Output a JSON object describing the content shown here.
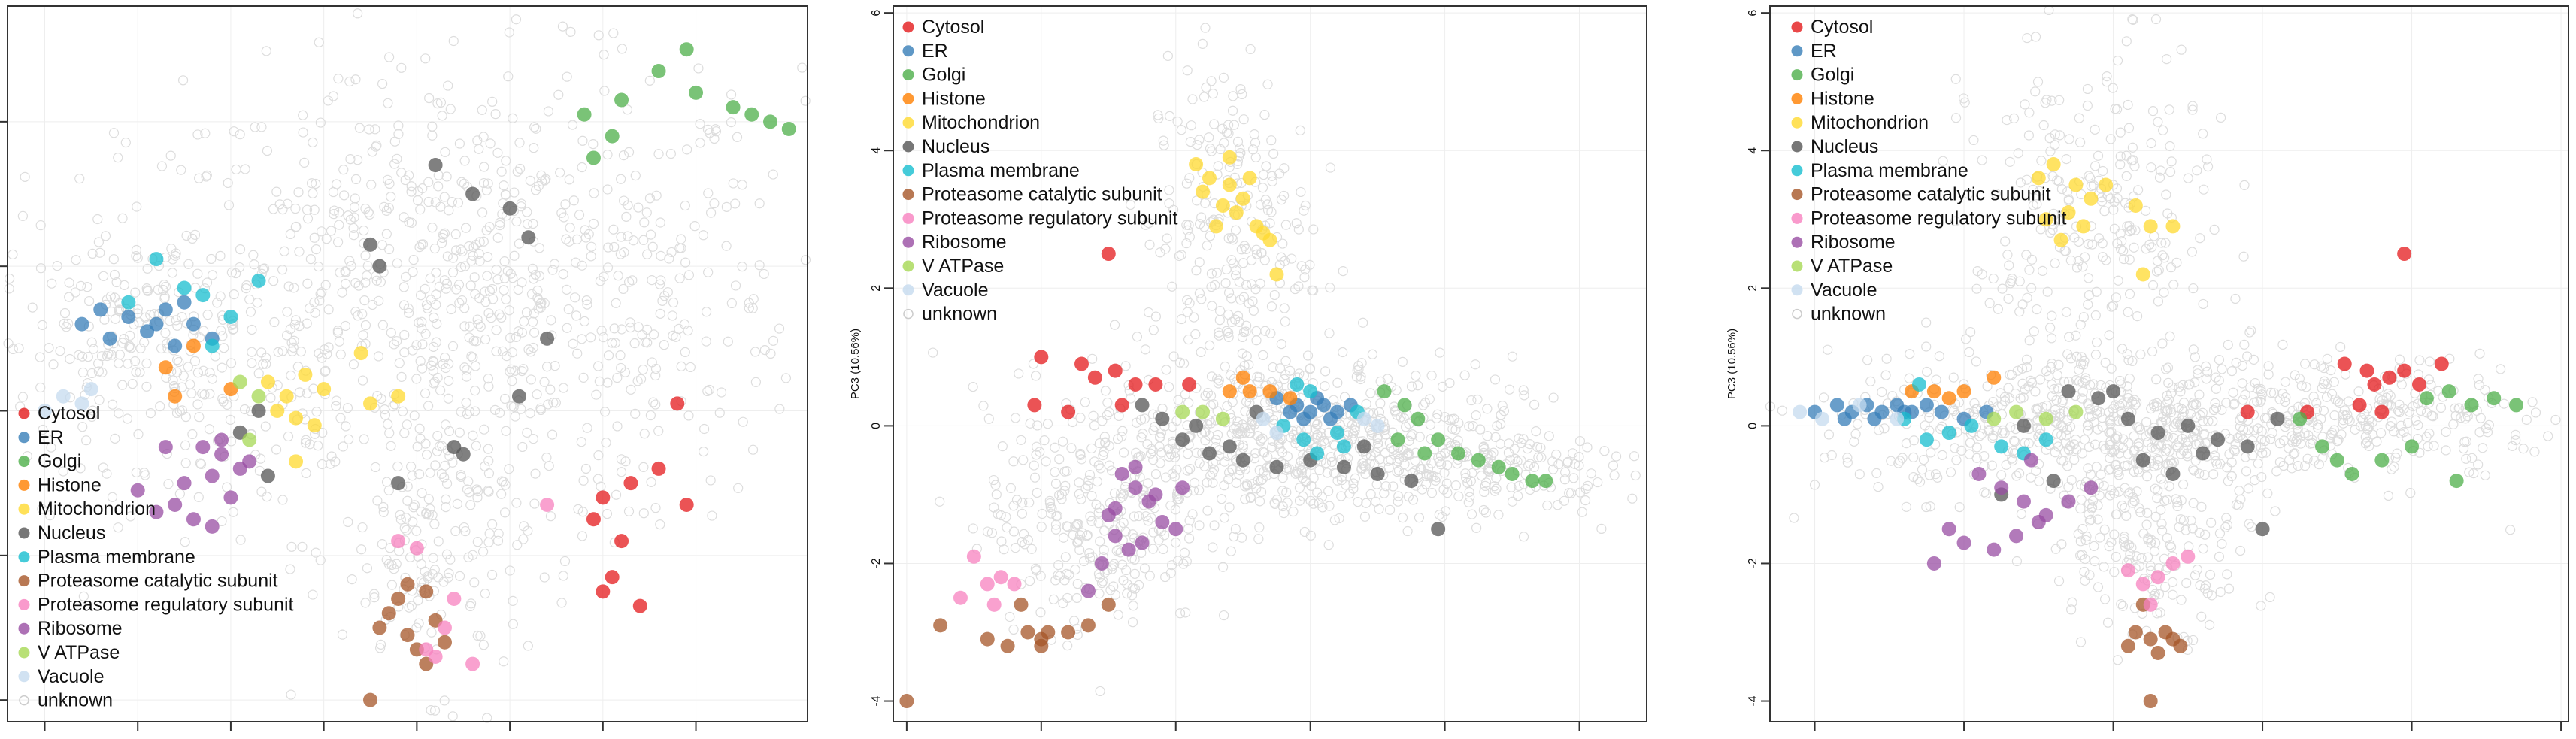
{
  "chart_data": [
    {
      "type": "scatter",
      "panel": "left",
      "xlabel": "",
      "ylabel": "",
      "xlim": [
        -3.4,
        5.2
      ],
      "ylim": [
        -4.3,
        5.6
      ],
      "xticks": [
        -3,
        -2,
        -1,
        0,
        1,
        2,
        3,
        4
      ],
      "yticks": [],
      "yticklabels_visible": false,
      "legend_position": "bottom-left",
      "grid": true,
      "background_points": "unknown",
      "series": [
        {
          "name": "Cytosol",
          "color": "#e41a1c",
          "x": [
            3.0,
            3.6,
            2.9,
            3.3,
            3.8,
            3.2,
            3.0,
            3.9,
            3.4,
            3.1
          ],
          "y": [
            -1.2,
            -0.8,
            -1.5,
            -1.0,
            0.1,
            -1.8,
            -2.5,
            -1.3,
            -2.7,
            -2.3
          ]
        },
        {
          "name": "ER",
          "color": "#377eb8",
          "x": [
            -2.6,
            -2.3,
            -2.1,
            -1.9,
            -1.7,
            -1.4,
            -1.2,
            -1.5,
            -2.4,
            -1.8,
            -1.6
          ],
          "y": [
            1.2,
            1.0,
            1.3,
            1.1,
            1.4,
            1.2,
            1.0,
            1.5,
            1.4,
            1.2,
            0.9
          ]
        },
        {
          "name": "Golgi",
          "color": "#4daf4a",
          "x": [
            3.9,
            3.6,
            4.4,
            4.6,
            3.2,
            2.8,
            4.0,
            4.8,
            5.0,
            2.9,
            3.1
          ],
          "y": [
            5.0,
            4.7,
            4.2,
            4.1,
            4.3,
            4.1,
            4.4,
            4.0,
            3.9,
            3.5,
            3.8
          ]
        },
        {
          "name": "Histone",
          "color": "#ff7f00",
          "x": [
            -1.7,
            -1.4,
            -1.0,
            -1.6
          ],
          "y": [
            0.6,
            0.9,
            0.3,
            0.2
          ]
        },
        {
          "name": "Mitochondrion",
          "color": "#ffd92f",
          "x": [
            -0.6,
            -0.4,
            -0.2,
            -0.5,
            -0.3,
            0.0,
            -0.1,
            0.4,
            0.5,
            0.8,
            -0.3
          ],
          "y": [
            0.4,
            0.2,
            0.5,
            0.0,
            -0.1,
            0.3,
            -0.2,
            0.8,
            0.1,
            0.2,
            -0.7
          ]
        },
        {
          "name": "Nucleus",
          "color": "#555555",
          "x": [
            1.2,
            1.6,
            2.0,
            2.2,
            2.4,
            0.5,
            0.6,
            -0.9,
            -0.7,
            1.4,
            1.5,
            2.1,
            0.8,
            -0.6
          ],
          "y": [
            3.4,
            3.0,
            2.8,
            2.4,
            1.0,
            2.3,
            2.0,
            -0.3,
            0.0,
            -0.5,
            -0.6,
            0.2,
            -1.0,
            -0.9
          ]
        },
        {
          "name": "Plasma membrane",
          "color": "#17becf",
          "x": [
            -1.8,
            -1.3,
            -0.7,
            -1.0,
            -2.1,
            -1.5,
            -1.2
          ],
          "y": [
            2.1,
            1.6,
            1.8,
            1.3,
            1.5,
            1.7,
            0.9
          ]
        },
        {
          "name": "Proteasome catalytic subunit",
          "color": "#a65628",
          "x": [
            0.9,
            1.1,
            0.8,
            1.2,
            0.6,
            0.9,
            1.3,
            1.0,
            1.1,
            0.7,
            0.5
          ],
          "y": [
            -2.4,
            -2.5,
            -2.6,
            -2.9,
            -3.0,
            -3.1,
            -3.2,
            -3.3,
            -3.5,
            -2.8,
            -4.0
          ]
        },
        {
          "name": "Proteasome regulatory subunit",
          "color": "#f781bf",
          "x": [
            1.0,
            1.4,
            1.2,
            1.6,
            1.1,
            1.3,
            2.4,
            0.8
          ],
          "y": [
            -1.9,
            -2.6,
            -3.4,
            -3.5,
            -3.3,
            -3.0,
            -1.3,
            -1.8
          ]
        },
        {
          "name": "Ribosome",
          "color": "#984ea3",
          "x": [
            -1.3,
            -1.1,
            -0.9,
            -1.2,
            -1.0,
            -1.5,
            -1.6,
            -1.8,
            -2.0,
            -1.4,
            -1.1,
            -0.8,
            -1.2,
            -1.7
          ],
          "y": [
            -0.5,
            -0.6,
            -0.8,
            -0.9,
            -1.2,
            -1.0,
            -1.3,
            -1.4,
            -1.1,
            -1.5,
            -0.4,
            -0.7,
            -1.6,
            -0.5
          ]
        },
        {
          "name": "V ATPase",
          "color": "#a6d854",
          "x": [
            -0.9,
            -0.7,
            -0.8
          ],
          "y": [
            0.4,
            0.2,
            -0.4
          ]
        },
        {
          "name": "Vacuole",
          "color": "#c6dbef",
          "x": [
            -3.0,
            -2.8,
            -2.6,
            -2.5
          ],
          "y": [
            0.0,
            0.2,
            0.1,
            0.3
          ]
        }
      ]
    },
    {
      "type": "scatter",
      "panel": "middle",
      "xlabel": "",
      "ylabel": "PC3 (10.56%)",
      "xlim": [
        -4.2,
        7.0
      ],
      "ylim": [
        -4.3,
        6.1
      ],
      "xticks": [
        -4,
        -2,
        0,
        2,
        4,
        6
      ],
      "yticks": [
        -4,
        -2,
        0,
        2,
        4,
        6
      ],
      "legend_position": "top-left",
      "grid": true,
      "background_points": "unknown",
      "series": [
        {
          "name": "Cytosol",
          "color": "#e41a1c",
          "x": [
            -2.0,
            -1.4,
            -0.9,
            -1.2,
            -2.1,
            -1.6,
            -0.6,
            -0.3,
            0.2,
            -0.8,
            -1.0
          ],
          "y": [
            1.0,
            0.9,
            0.8,
            0.7,
            0.3,
            0.2,
            0.6,
            0.6,
            0.6,
            0.3,
            2.5
          ]
        },
        {
          "name": "ER",
          "color": "#377eb8",
          "x": [
            1.5,
            1.8,
            2.0,
            2.2,
            2.4,
            2.6,
            1.9,
            2.1,
            1.7,
            2.3
          ],
          "y": [
            0.4,
            0.3,
            0.2,
            0.3,
            0.2,
            0.3,
            0.1,
            0.4,
            0.2,
            0.1
          ]
        },
        {
          "name": "Golgi",
          "color": "#4daf4a",
          "x": [
            3.1,
            3.4,
            3.6,
            3.9,
            4.2,
            4.5,
            4.8,
            5.0,
            5.3,
            5.5,
            3.3,
            3.7
          ],
          "y": [
            0.5,
            0.3,
            0.1,
            -0.2,
            -0.4,
            -0.5,
            -0.6,
            -0.7,
            -0.8,
            -0.8,
            -0.2,
            -0.4
          ]
        },
        {
          "name": "Histone",
          "color": "#ff7f00",
          "x": [
            0.8,
            1.1,
            1.4,
            1.7,
            1.0
          ],
          "y": [
            0.5,
            0.5,
            0.5,
            0.4,
            0.7
          ]
        },
        {
          "name": "Mitochondrion",
          "color": "#ffd92f",
          "x": [
            0.3,
            0.5,
            0.8,
            1.0,
            0.7,
            0.9,
            0.6,
            1.2,
            1.4,
            0.4,
            1.1,
            0.8,
            1.3,
            1.5
          ],
          "y": [
            3.8,
            3.6,
            3.5,
            3.3,
            3.2,
            3.1,
            2.9,
            2.9,
            2.7,
            3.4,
            3.6,
            3.9,
            2.8,
            2.2
          ]
        },
        {
          "name": "Nucleus",
          "color": "#555555",
          "x": [
            -0.5,
            -0.2,
            0.1,
            0.5,
            1.0,
            1.5,
            2.0,
            2.5,
            3.0,
            3.5,
            0.3,
            0.8,
            1.2,
            2.8,
            3.9
          ],
          "y": [
            0.3,
            0.1,
            -0.2,
            -0.4,
            -0.5,
            -0.6,
            -0.5,
            -0.6,
            -0.7,
            -0.8,
            0.0,
            -0.3,
            0.2,
            -0.3,
            -1.5
          ]
        },
        {
          "name": "Plasma membrane",
          "color": "#17becf",
          "x": [
            1.6,
            1.9,
            2.1,
            2.4,
            2.7,
            2.0,
            1.8,
            2.5
          ],
          "y": [
            0.0,
            -0.2,
            -0.4,
            -0.1,
            0.2,
            0.5,
            0.6,
            -0.3
          ]
        },
        {
          "name": "Proteasome catalytic subunit",
          "color": "#a65628",
          "x": [
            -3.5,
            -2.8,
            -2.5,
            -2.2,
            -2.0,
            -1.9,
            -1.6,
            -1.3,
            -1.0,
            -2.3,
            -2.0,
            -4.0
          ],
          "y": [
            -2.9,
            -3.1,
            -3.2,
            -3.0,
            -3.1,
            -3.0,
            -3.0,
            -2.9,
            -2.6,
            -2.6,
            -3.2,
            -4.0
          ]
        },
        {
          "name": "Proteasome regulatory subunit",
          "color": "#f781bf",
          "x": [
            -3.0,
            -2.8,
            -2.6,
            -2.4,
            -3.2,
            -2.7
          ],
          "y": [
            -1.9,
            -2.3,
            -2.2,
            -2.3,
            -2.5,
            -2.6
          ]
        },
        {
          "name": "Ribosome",
          "color": "#984ea3",
          "x": [
            -0.8,
            -0.6,
            -0.4,
            -0.2,
            0.0,
            -0.9,
            -0.5,
            -0.7,
            -1.1,
            -1.3,
            -0.3,
            -1.0,
            -0.6,
            -0.9,
            0.1
          ],
          "y": [
            -0.7,
            -0.9,
            -1.1,
            -1.4,
            -1.5,
            -1.6,
            -1.7,
            -1.8,
            -2.0,
            -2.4,
            -1.0,
            -1.3,
            -0.6,
            -1.2,
            -0.9
          ]
        },
        {
          "name": "V ATPase",
          "color": "#a6d854",
          "x": [
            0.1,
            0.4,
            0.7
          ],
          "y": [
            0.2,
            0.2,
            0.1
          ]
        },
        {
          "name": "Vacuole",
          "color": "#c6dbef",
          "x": [
            1.3,
            1.5,
            2.8,
            3.0
          ],
          "y": [
            0.1,
            -0.1,
            0.1,
            0.0
          ]
        }
      ]
    },
    {
      "type": "scatter",
      "panel": "right",
      "xlabel": "",
      "ylabel": "PC3 (10.56%)",
      "xlim": [
        -4.6,
        6.1
      ],
      "ylim": [
        -4.3,
        6.1
      ],
      "xticks": [
        -4,
        -2,
        0,
        2,
        4,
        6
      ],
      "yticks": [
        -4,
        -2,
        0,
        2,
        4,
        6
      ],
      "legend_position": "top-left",
      "grid": true,
      "background_points": "unknown",
      "series": [
        {
          "name": "Cytosol",
          "color": "#e41a1c",
          "x": [
            3.1,
            3.4,
            3.7,
            3.5,
            3.9,
            4.1,
            4.4,
            3.3,
            3.6,
            1.8,
            2.6,
            3.9
          ],
          "y": [
            0.9,
            0.8,
            0.7,
            0.6,
            0.8,
            0.6,
            0.9,
            0.3,
            0.2,
            0.2,
            0.2,
            2.5
          ]
        },
        {
          "name": "ER",
          "color": "#377eb8",
          "x": [
            -4.0,
            -3.7,
            -3.5,
            -3.3,
            -3.1,
            -2.9,
            -2.7,
            -2.5,
            -3.6,
            -3.2,
            -2.8,
            -2.3,
            -2.0,
            -1.7
          ],
          "y": [
            0.2,
            0.3,
            0.2,
            0.3,
            0.2,
            0.3,
            0.2,
            0.3,
            0.1,
            0.1,
            0.2,
            0.2,
            0.1,
            0.2
          ]
        },
        {
          "name": "Golgi",
          "color": "#4daf4a",
          "x": [
            4.5,
            4.8,
            5.1,
            5.4,
            4.2,
            4.0,
            3.6,
            3.2,
            2.8,
            4.6,
            3.0,
            2.5
          ],
          "y": [
            0.5,
            0.3,
            0.4,
            0.3,
            0.4,
            -0.3,
            -0.5,
            -0.7,
            -0.3,
            -0.8,
            -0.5,
            0.1
          ]
        },
        {
          "name": "Histone",
          "color": "#ff7f00",
          "x": [
            -2.7,
            -2.4,
            -2.2,
            -2.0,
            -1.6
          ],
          "y": [
            0.5,
            0.5,
            0.4,
            0.5,
            0.7
          ]
        },
        {
          "name": "Mitochondrion",
          "color": "#ffd92f",
          "x": [
            -1.0,
            -0.8,
            -0.5,
            -0.3,
            -0.6,
            -0.9,
            -0.4,
            -0.1,
            0.3,
            0.5,
            0.8,
            -0.7,
            0.4
          ],
          "y": [
            3.6,
            3.8,
            3.5,
            3.3,
            3.1,
            3.0,
            2.9,
            3.5,
            3.2,
            2.9,
            2.9,
            2.7,
            2.2
          ]
        },
        {
          "name": "Nucleus",
          "color": "#555555",
          "x": [
            -0.6,
            -0.2,
            0.2,
            0.6,
            1.0,
            1.4,
            1.8,
            2.2,
            0.4,
            0.8,
            1.2,
            0.0,
            -1.2,
            -0.8,
            -1.5,
            2.0
          ],
          "y": [
            0.5,
            0.4,
            0.1,
            -0.1,
            0.0,
            -0.2,
            -0.3,
            0.1,
            -0.5,
            -0.7,
            -0.4,
            0.5,
            0.0,
            -0.8,
            -1.0,
            -1.5
          ]
        },
        {
          "name": "Plasma membrane",
          "color": "#17becf",
          "x": [
            -2.8,
            -2.5,
            -2.2,
            -1.9,
            -1.5,
            -1.2,
            -2.6,
            -0.9
          ],
          "y": [
            0.1,
            -0.2,
            -0.1,
            0.0,
            -0.3,
            -0.4,
            0.6,
            -0.2
          ]
        },
        {
          "name": "Proteasome catalytic subunit",
          "color": "#a65628",
          "x": [
            0.3,
            0.5,
            0.7,
            0.9,
            0.6,
            0.8,
            0.4,
            0.2,
            0.5
          ],
          "y": [
            -3.0,
            -3.1,
            -3.0,
            -3.2,
            -3.3,
            -3.1,
            -2.6,
            -3.2,
            -4.0
          ]
        },
        {
          "name": "Proteasome regulatory subunit",
          "color": "#f781bf",
          "x": [
            0.2,
            0.4,
            0.6,
            0.8,
            0.5,
            1.0
          ],
          "y": [
            -2.1,
            -2.3,
            -2.2,
            -2.0,
            -2.6,
            -1.9
          ]
        },
        {
          "name": "Ribosome",
          "color": "#984ea3",
          "x": [
            -1.8,
            -1.5,
            -1.2,
            -0.9,
            -2.2,
            -2.0,
            -1.6,
            -1.3,
            -1.0,
            -0.6,
            -0.3,
            -2.4,
            -1.1
          ],
          "y": [
            -0.7,
            -0.9,
            -1.1,
            -1.3,
            -1.5,
            -1.7,
            -1.8,
            -1.6,
            -1.4,
            -1.1,
            -0.9,
            -2.0,
            -0.5
          ]
        },
        {
          "name": "V ATPase",
          "color": "#a6d854",
          "x": [
            -1.6,
            -1.3,
            -0.9,
            -0.5
          ],
          "y": [
            0.1,
            0.2,
            0.1,
            0.2
          ]
        },
        {
          "name": "Vacuole",
          "color": "#c6dbef",
          "x": [
            -4.2,
            -3.9,
            -3.4,
            -2.9
          ],
          "y": [
            0.2,
            0.1,
            0.3,
            0.1
          ]
        }
      ]
    }
  ],
  "legend_items": [
    {
      "name": "Cytosol",
      "color": "#e41a1c"
    },
    {
      "name": "ER",
      "color": "#377eb8"
    },
    {
      "name": "Golgi",
      "color": "#4daf4a"
    },
    {
      "name": "Histone",
      "color": "#ff7f00"
    },
    {
      "name": "Mitochondrion",
      "color": "#ffd92f"
    },
    {
      "name": "Nucleus",
      "color": "#555555"
    },
    {
      "name": "Plasma membrane",
      "color": "#17becf"
    },
    {
      "name": "Proteasome catalytic subunit",
      "color": "#a65628"
    },
    {
      "name": "Proteasome regulatory subunit",
      "color": "#f781bf"
    },
    {
      "name": "Ribosome",
      "color": "#984ea3"
    },
    {
      "name": "V ATPase",
      "color": "#a6d854"
    },
    {
      "name": "Vacuole",
      "color": "#c6dbef"
    },
    {
      "name": "unknown",
      "color": "#e6e6e6"
    }
  ]
}
